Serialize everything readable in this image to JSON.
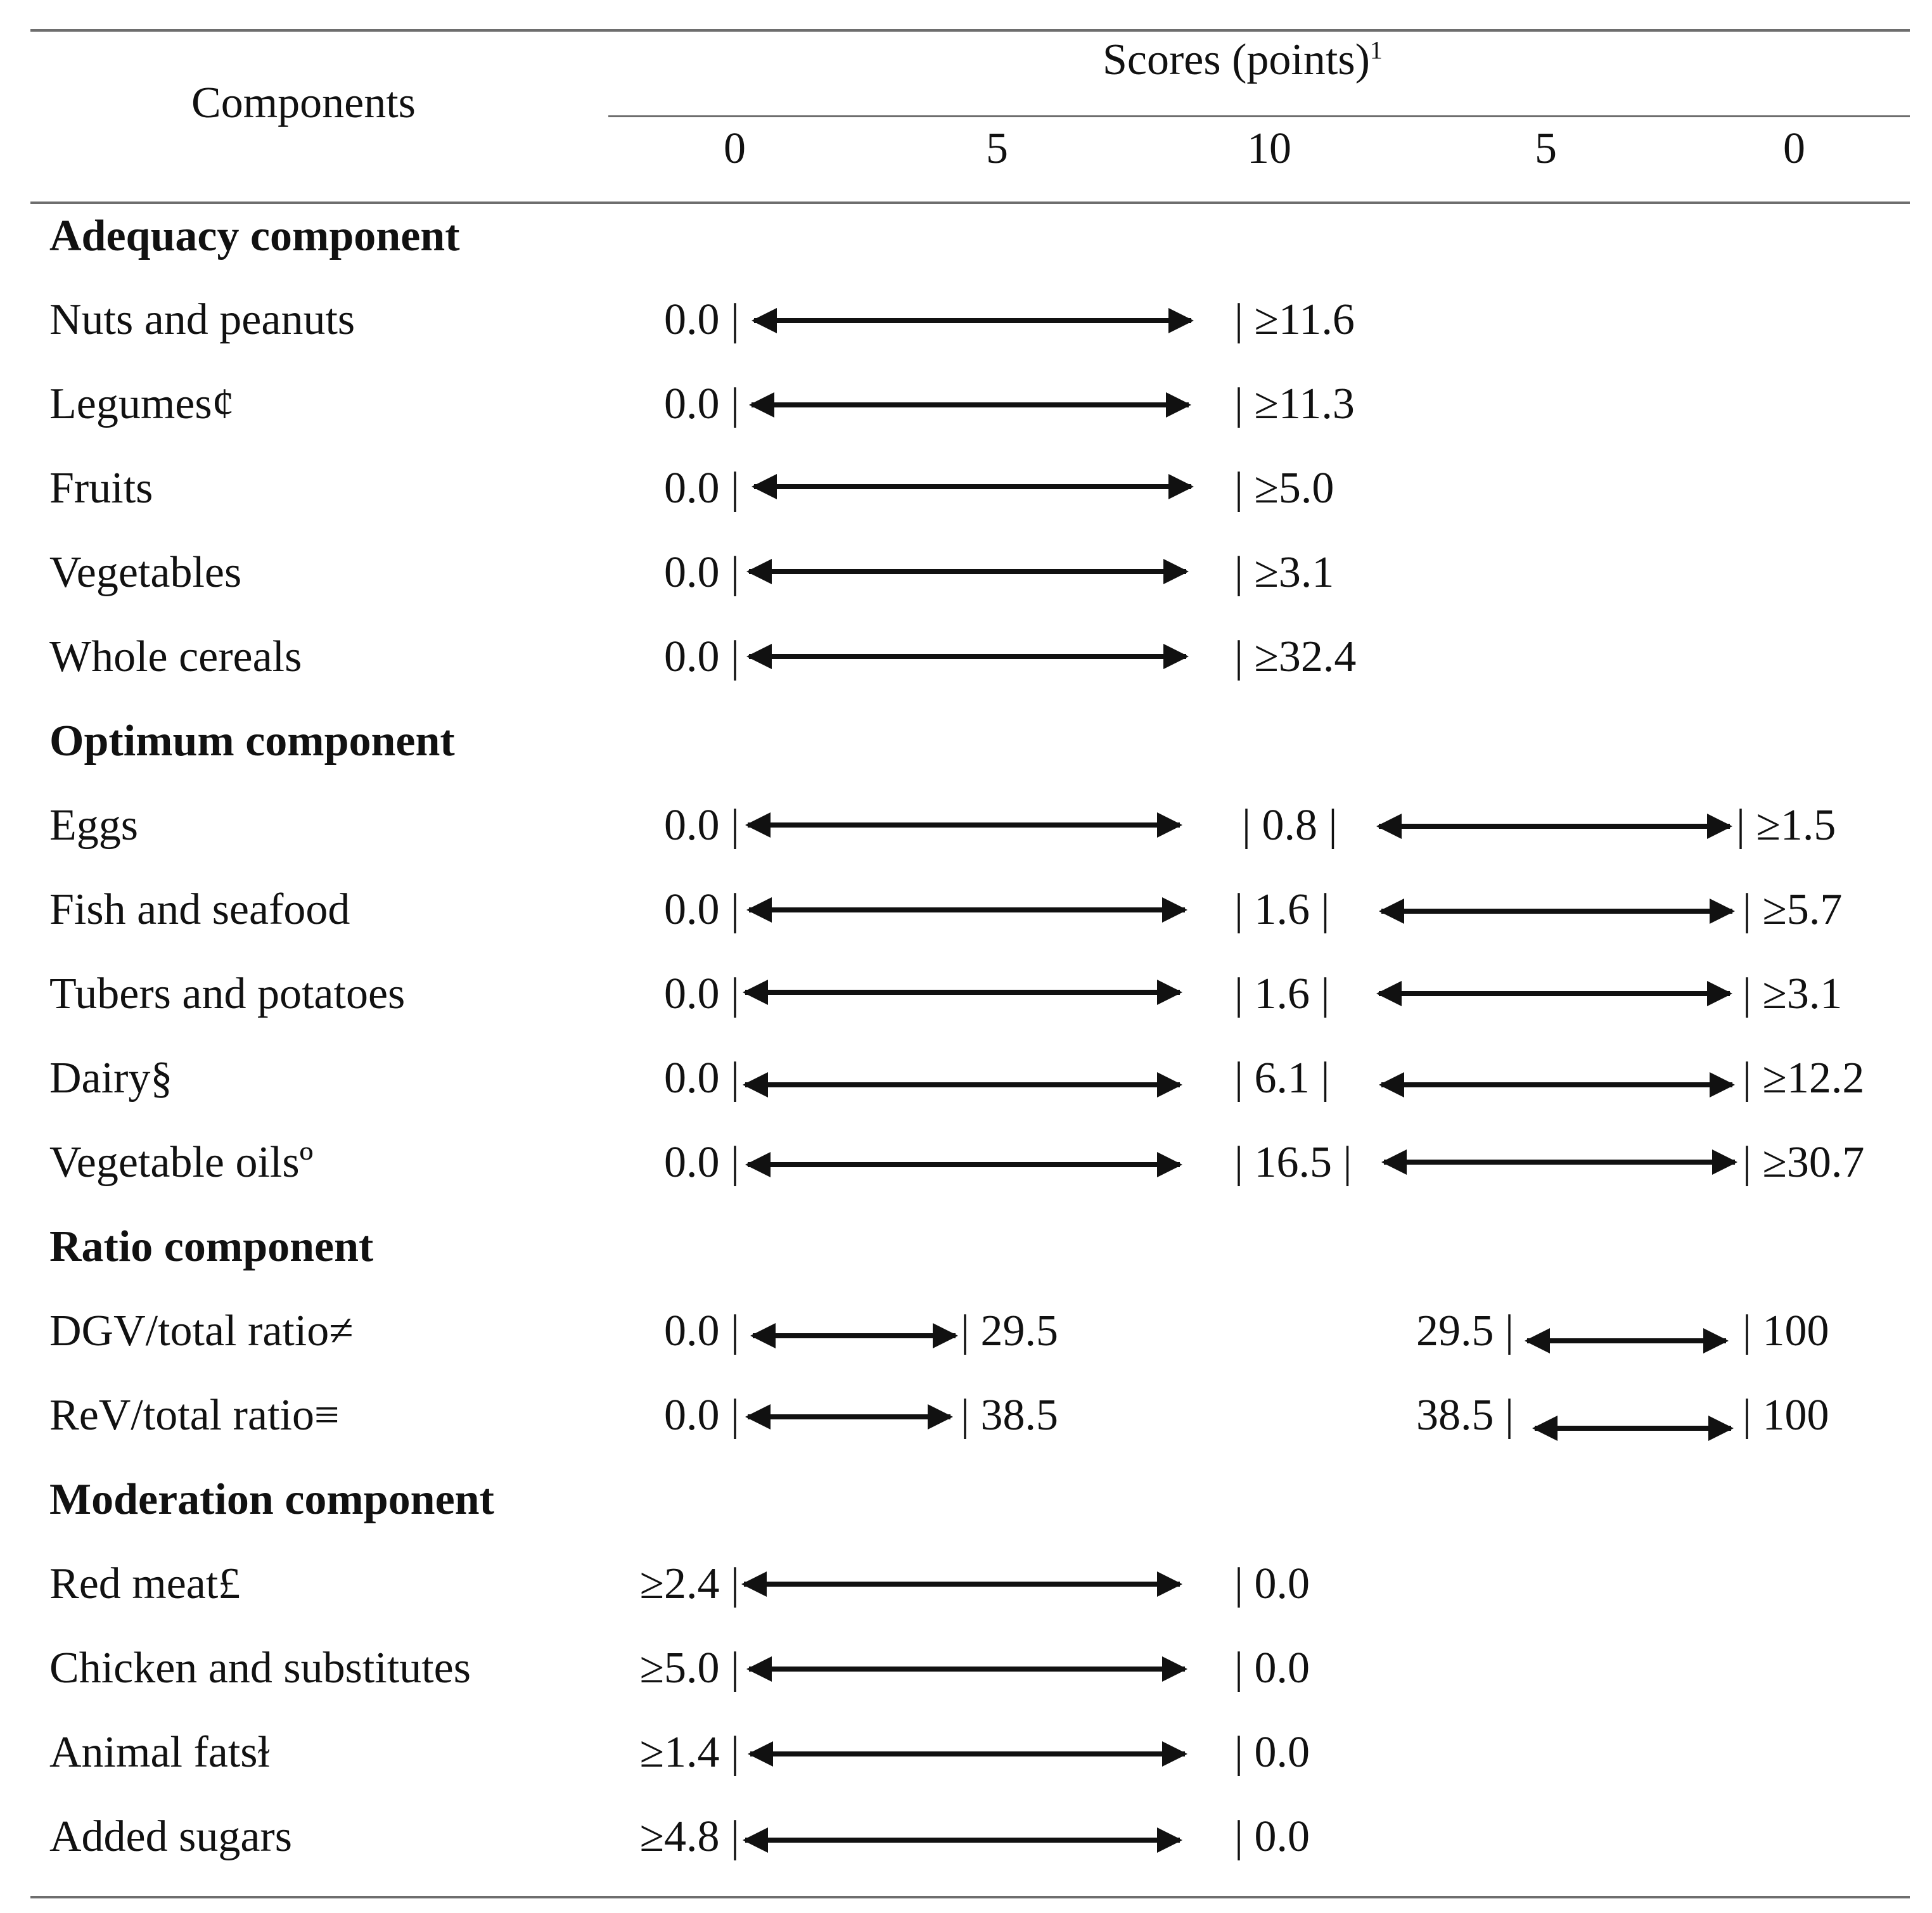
{
  "header": {
    "components_label": "Components",
    "scores_label": "Scores (points)",
    "scores_sup": "1",
    "score_columns": [
      "0",
      "5",
      "10",
      "5",
      "0"
    ]
  },
  "sections": [
    {
      "title": "Adequacy component",
      "rows": [
        {
          "label": "Nuts and peanuts",
          "left": "0.0 |",
          "right": "| ≥11.6"
        },
        {
          "label": "Legumes¢",
          "left": "0.0 |",
          "right": "| ≥11.3"
        },
        {
          "label": "Fruits",
          "left": "0.0 |",
          "right": "| ≥5.0"
        },
        {
          "label": "Vegetables",
          "left": "0.0 |",
          "right": "| ≥3.1"
        },
        {
          "label": "Whole cereals",
          "left": "0.0 |",
          "right": "| ≥32.4"
        }
      ]
    },
    {
      "title": "Optimum component",
      "rows": [
        {
          "label": "Eggs",
          "left": "0.0 |",
          "mid": "| 0.8 |",
          "right": "| ≥1.5"
        },
        {
          "label": "Fish and seafood",
          "left": "0.0 |",
          "mid": "| 1.6 |",
          "right": "| ≥5.7"
        },
        {
          "label": "Tubers and potatoes",
          "left": "0.0 |",
          "mid": "| 1.6 |",
          "right": "| ≥3.1"
        },
        {
          "label": "Dairy§",
          "left": "0.0 |",
          "mid": "| 6.1 |",
          "right": "| ≥12.2"
        },
        {
          "label": "Vegetable oilsº",
          "left": "0.0 |",
          "mid": "| 16.5 |",
          "right": "| ≥30.7"
        }
      ]
    },
    {
      "title": "Ratio component",
      "rows": [
        {
          "label": "DGV/total ratio≠",
          "left": "0.0 |",
          "mid_end": "| 29.5",
          "right_start": "29.5 |",
          "right": "| 100"
        },
        {
          "label": "ReV/total ratio≡",
          "left": "0.0 |",
          "mid_end": "| 38.5",
          "right_start": "38.5 |",
          "right": "| 100"
        }
      ]
    },
    {
      "title": "Moderation component",
      "rows": [
        {
          "label": "Red meat£",
          "left": "≥2.4 |",
          "right": "| 0.0"
        },
        {
          "label": "Chicken and substitutes",
          "left": "≥5.0 |",
          "right": "| 0.0"
        },
        {
          "label": "Animal fatsɫ",
          "left": "≥1.4 |",
          "right": "| 0.0"
        },
        {
          "label": "Added sugars",
          "left": "≥4.8 |",
          "right": "| 0.0"
        }
      ]
    }
  ]
}
